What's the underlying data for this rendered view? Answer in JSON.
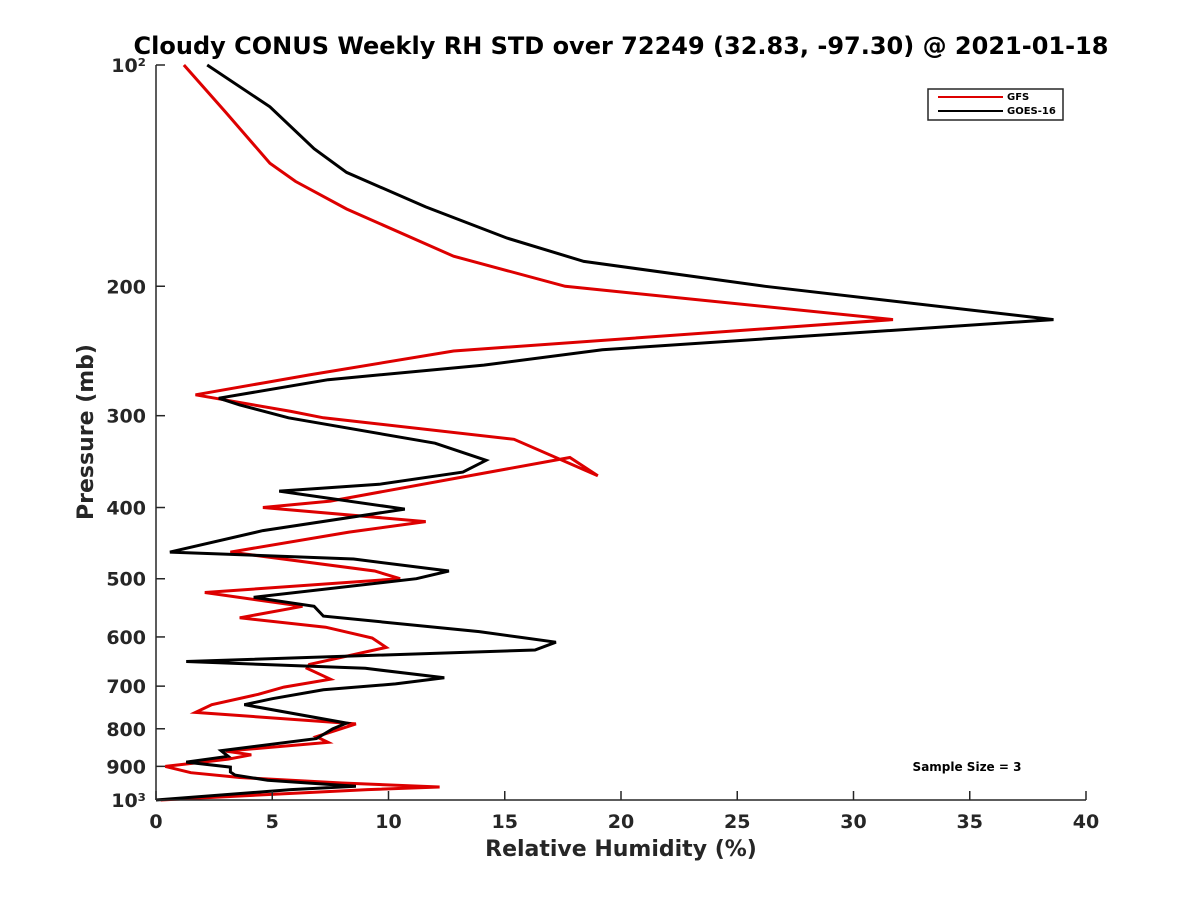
{
  "chart_data": {
    "type": "line",
    "title": "Cloudy CONUS Weekly RH STD over 72249 (32.83, -97.30) @ 2021-01-18",
    "xlabel": "Relative Humidity (%)",
    "ylabel": "Pressure (mb)",
    "xlim": [
      0,
      40
    ],
    "ylim": [
      100,
      1000
    ],
    "y_scale": "log",
    "y_reversed": true,
    "x_ticks": [
      0,
      5,
      10,
      15,
      20,
      25,
      30,
      35,
      40
    ],
    "x_tick_labels": [
      "0",
      "5",
      "10",
      "15",
      "20",
      "25",
      "30",
      "35",
      "40"
    ],
    "y_ticks": [
      100,
      200,
      300,
      400,
      500,
      600,
      700,
      800,
      900,
      1000
    ],
    "y_tick_labels": [
      "10²",
      "200",
      "300",
      "400",
      "500",
      "600",
      "700",
      "800",
      "900",
      "10³"
    ],
    "grid": false,
    "legend_position": "top-right",
    "annotation": "Sample Size = 3",
    "series": [
      {
        "name": "GFS",
        "color": "#dd0000",
        "points": [
          [
            1.2,
            100
          ],
          [
            3.0,
            116
          ],
          [
            4.9,
            136
          ],
          [
            6.0,
            144
          ],
          [
            8.2,
            157
          ],
          [
            12.8,
            182
          ],
          [
            17.6,
            200
          ],
          [
            31.7,
            222
          ],
          [
            12.8,
            245
          ],
          [
            6.6,
            264
          ],
          [
            1.7,
            281
          ],
          [
            5.8,
            296
          ],
          [
            7.2,
            302
          ],
          [
            15.4,
            323
          ],
          [
            19.0,
            362
          ],
          [
            17.8,
            342
          ],
          [
            7.5,
            392
          ],
          [
            4.6,
            400
          ],
          [
            11.6,
            418
          ],
          [
            8.3,
            432
          ],
          [
            3.2,
            460
          ],
          [
            9.4,
            488
          ],
          [
            10.5,
            500
          ],
          [
            2.1,
            522
          ],
          [
            6.3,
            545
          ],
          [
            3.6,
            565
          ],
          [
            7.3,
            582
          ],
          [
            9.3,
            602
          ],
          [
            9.9,
            620
          ],
          [
            6.6,
            654
          ],
          [
            6.5,
            662
          ],
          [
            7.5,
            685
          ],
          [
            5.5,
            702
          ],
          [
            4.4,
            718
          ],
          [
            2.4,
            742
          ],
          [
            1.7,
            760
          ],
          [
            8.6,
            788
          ],
          [
            6.9,
            820
          ],
          [
            7.4,
            835
          ],
          [
            3.0,
            858
          ],
          [
            4.1,
            868
          ],
          [
            3.1,
            880
          ],
          [
            0.4,
            900
          ],
          [
            1.5,
            918
          ],
          [
            3.6,
            932
          ],
          [
            8.0,
            948
          ],
          [
            12.2,
            960
          ],
          [
            9.1,
            968
          ],
          [
            0.2,
            1000
          ]
        ]
      },
      {
        "name": "GOES-16",
        "color": "#000000",
        "points": [
          [
            2.2,
            100
          ],
          [
            4.9,
            114
          ],
          [
            6.8,
            130
          ],
          [
            8.2,
            140
          ],
          [
            11.6,
            156
          ],
          [
            15.1,
            172
          ],
          [
            18.4,
            185
          ],
          [
            26.2,
            200
          ],
          [
            38.6,
            222
          ],
          [
            19.2,
            244
          ],
          [
            14.1,
            256
          ],
          [
            7.4,
            268
          ],
          [
            2.7,
            284
          ],
          [
            3.6,
            290
          ],
          [
            5.7,
            302
          ],
          [
            12.0,
            327
          ],
          [
            14.2,
            345
          ],
          [
            13.2,
            358
          ],
          [
            9.6,
            372
          ],
          [
            5.3,
            380
          ],
          [
            10.7,
            402
          ],
          [
            4.6,
            430
          ],
          [
            0.6,
            460
          ],
          [
            8.5,
            470
          ],
          [
            12.6,
            488
          ],
          [
            11.2,
            500
          ],
          [
            4.2,
            530
          ],
          [
            6.8,
            545
          ],
          [
            7.2,
            562
          ],
          [
            13.9,
            590
          ],
          [
            17.2,
            610
          ],
          [
            16.3,
            625
          ],
          [
            1.3,
            648
          ],
          [
            9.0,
            662
          ],
          [
            12.4,
            682
          ],
          [
            10.3,
            695
          ],
          [
            7.2,
            708
          ],
          [
            5.0,
            728
          ],
          [
            3.8,
            742
          ],
          [
            8.2,
            786
          ],
          [
            7.6,
            800
          ],
          [
            6.9,
            825
          ],
          [
            2.8,
            857
          ],
          [
            3.1,
            872
          ],
          [
            1.3,
            888
          ],
          [
            3.2,
            902
          ],
          [
            3.2,
            916
          ],
          [
            3.4,
            925
          ],
          [
            4.8,
            940
          ],
          [
            8.6,
            958
          ],
          [
            5.8,
            968
          ],
          [
            0.0,
            1000
          ]
        ]
      }
    ]
  }
}
